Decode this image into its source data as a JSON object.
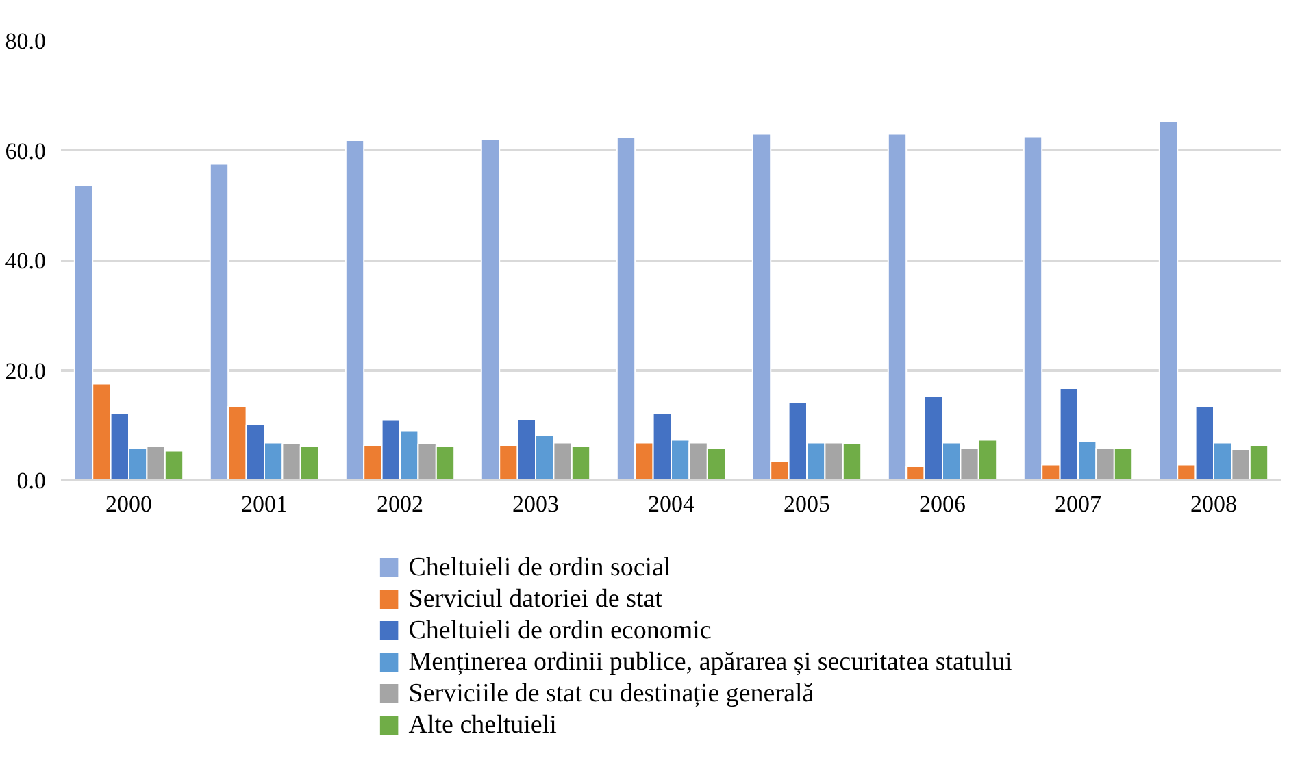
{
  "chart_data": {
    "type": "bar",
    "categories": [
      "2000",
      "2001",
      "2002",
      "2003",
      "2004",
      "2005",
      "2006",
      "2007",
      "2008"
    ],
    "series": [
      {
        "name": "Cheltuieli de ordin social",
        "color": "#8faadc",
        "values": [
          53.7,
          57.5,
          61.8,
          62.0,
          62.3,
          63.0,
          63.0,
          62.5,
          65.3
        ]
      },
      {
        "name": "Serviciul datoriei de stat",
        "color": "#ed7d31",
        "values": [
          17.5,
          13.4,
          6.3,
          6.3,
          6.8,
          3.5,
          2.5,
          2.8,
          2.8
        ]
      },
      {
        "name": "Cheltuieli de ordin economic",
        "color": "#4472c4",
        "values": [
          12.2,
          10.1,
          10.9,
          11.1,
          12.2,
          14.2,
          15.2,
          16.7,
          13.4
        ]
      },
      {
        "name": "Menținerea ordinii publice, apărarea și securitatea statului",
        "color": "#5b9bd5",
        "values": [
          5.8,
          6.8,
          8.9,
          8.1,
          7.3,
          6.8,
          6.8,
          7.1,
          6.8
        ]
      },
      {
        "name": "Serviciile de stat cu destinație generală",
        "color": "#a5a5a5",
        "values": [
          6.1,
          6.6,
          6.6,
          6.8,
          6.8,
          6.8,
          5.8,
          5.8,
          5.6
        ]
      },
      {
        "name": "Alte cheltuieli",
        "color": "#70ad47",
        "values": [
          5.3,
          6.1,
          6.1,
          6.1,
          5.8,
          6.6,
          7.3,
          5.8,
          6.3
        ]
      }
    ],
    "ylim": [
      0,
      80
    ],
    "yticks": [
      {
        "value": 0,
        "label": "0.0"
      },
      {
        "value": 20,
        "label": "20.0"
      },
      {
        "value": 40,
        "label": "40.0"
      },
      {
        "value": 60,
        "label": "60.0"
      },
      {
        "value": 80,
        "label": "80.0"
      }
    ],
    "grid": "y",
    "legend": "bottom"
  }
}
